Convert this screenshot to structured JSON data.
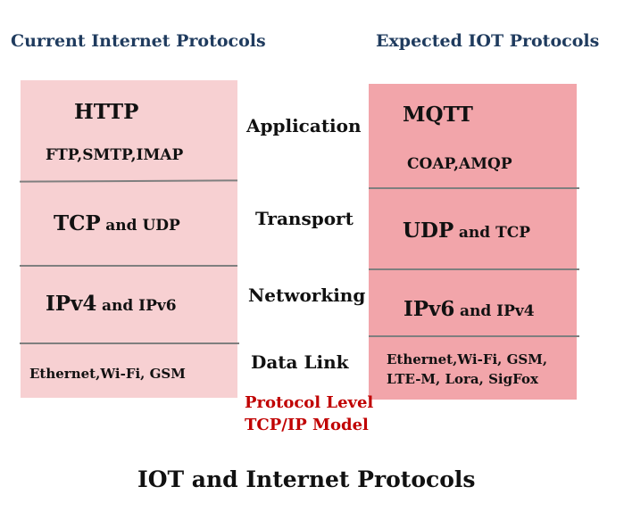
{
  "headers": {
    "left": "Current Internet Protocols",
    "right": "Expected IOT Protocols"
  },
  "colors": {
    "left_box": "#f7d0d2",
    "right_box": "#f2a5aa",
    "header": "#1f3b5e",
    "note": "#c00000"
  },
  "layers": [
    "Application",
    "Transport",
    "Networking",
    "Data Link"
  ],
  "left": {
    "application": {
      "main": "HTTP",
      "sub": "FTP,SMTP,IMAP"
    },
    "transport": {
      "main": "TCP",
      "rest": "and UDP"
    },
    "networking": {
      "main": "IPv4",
      "rest": "and IPv6"
    },
    "datalink": "Ethernet,Wi-Fi, GSM"
  },
  "right": {
    "application": {
      "main": "MQTT",
      "sub": "COAP,AMQP"
    },
    "transport": {
      "main": "UDP",
      "rest": "and TCP"
    },
    "networking": {
      "main": "IPv6",
      "rest": "and IPv4"
    },
    "datalink": [
      "Ethernet,Wi-Fi,  GSM,",
      "LTE-M, Lora, SigFox"
    ]
  },
  "note": [
    "Protocol Level",
    "TCP/IP Model"
  ],
  "title": "IOT and Internet Protocols"
}
